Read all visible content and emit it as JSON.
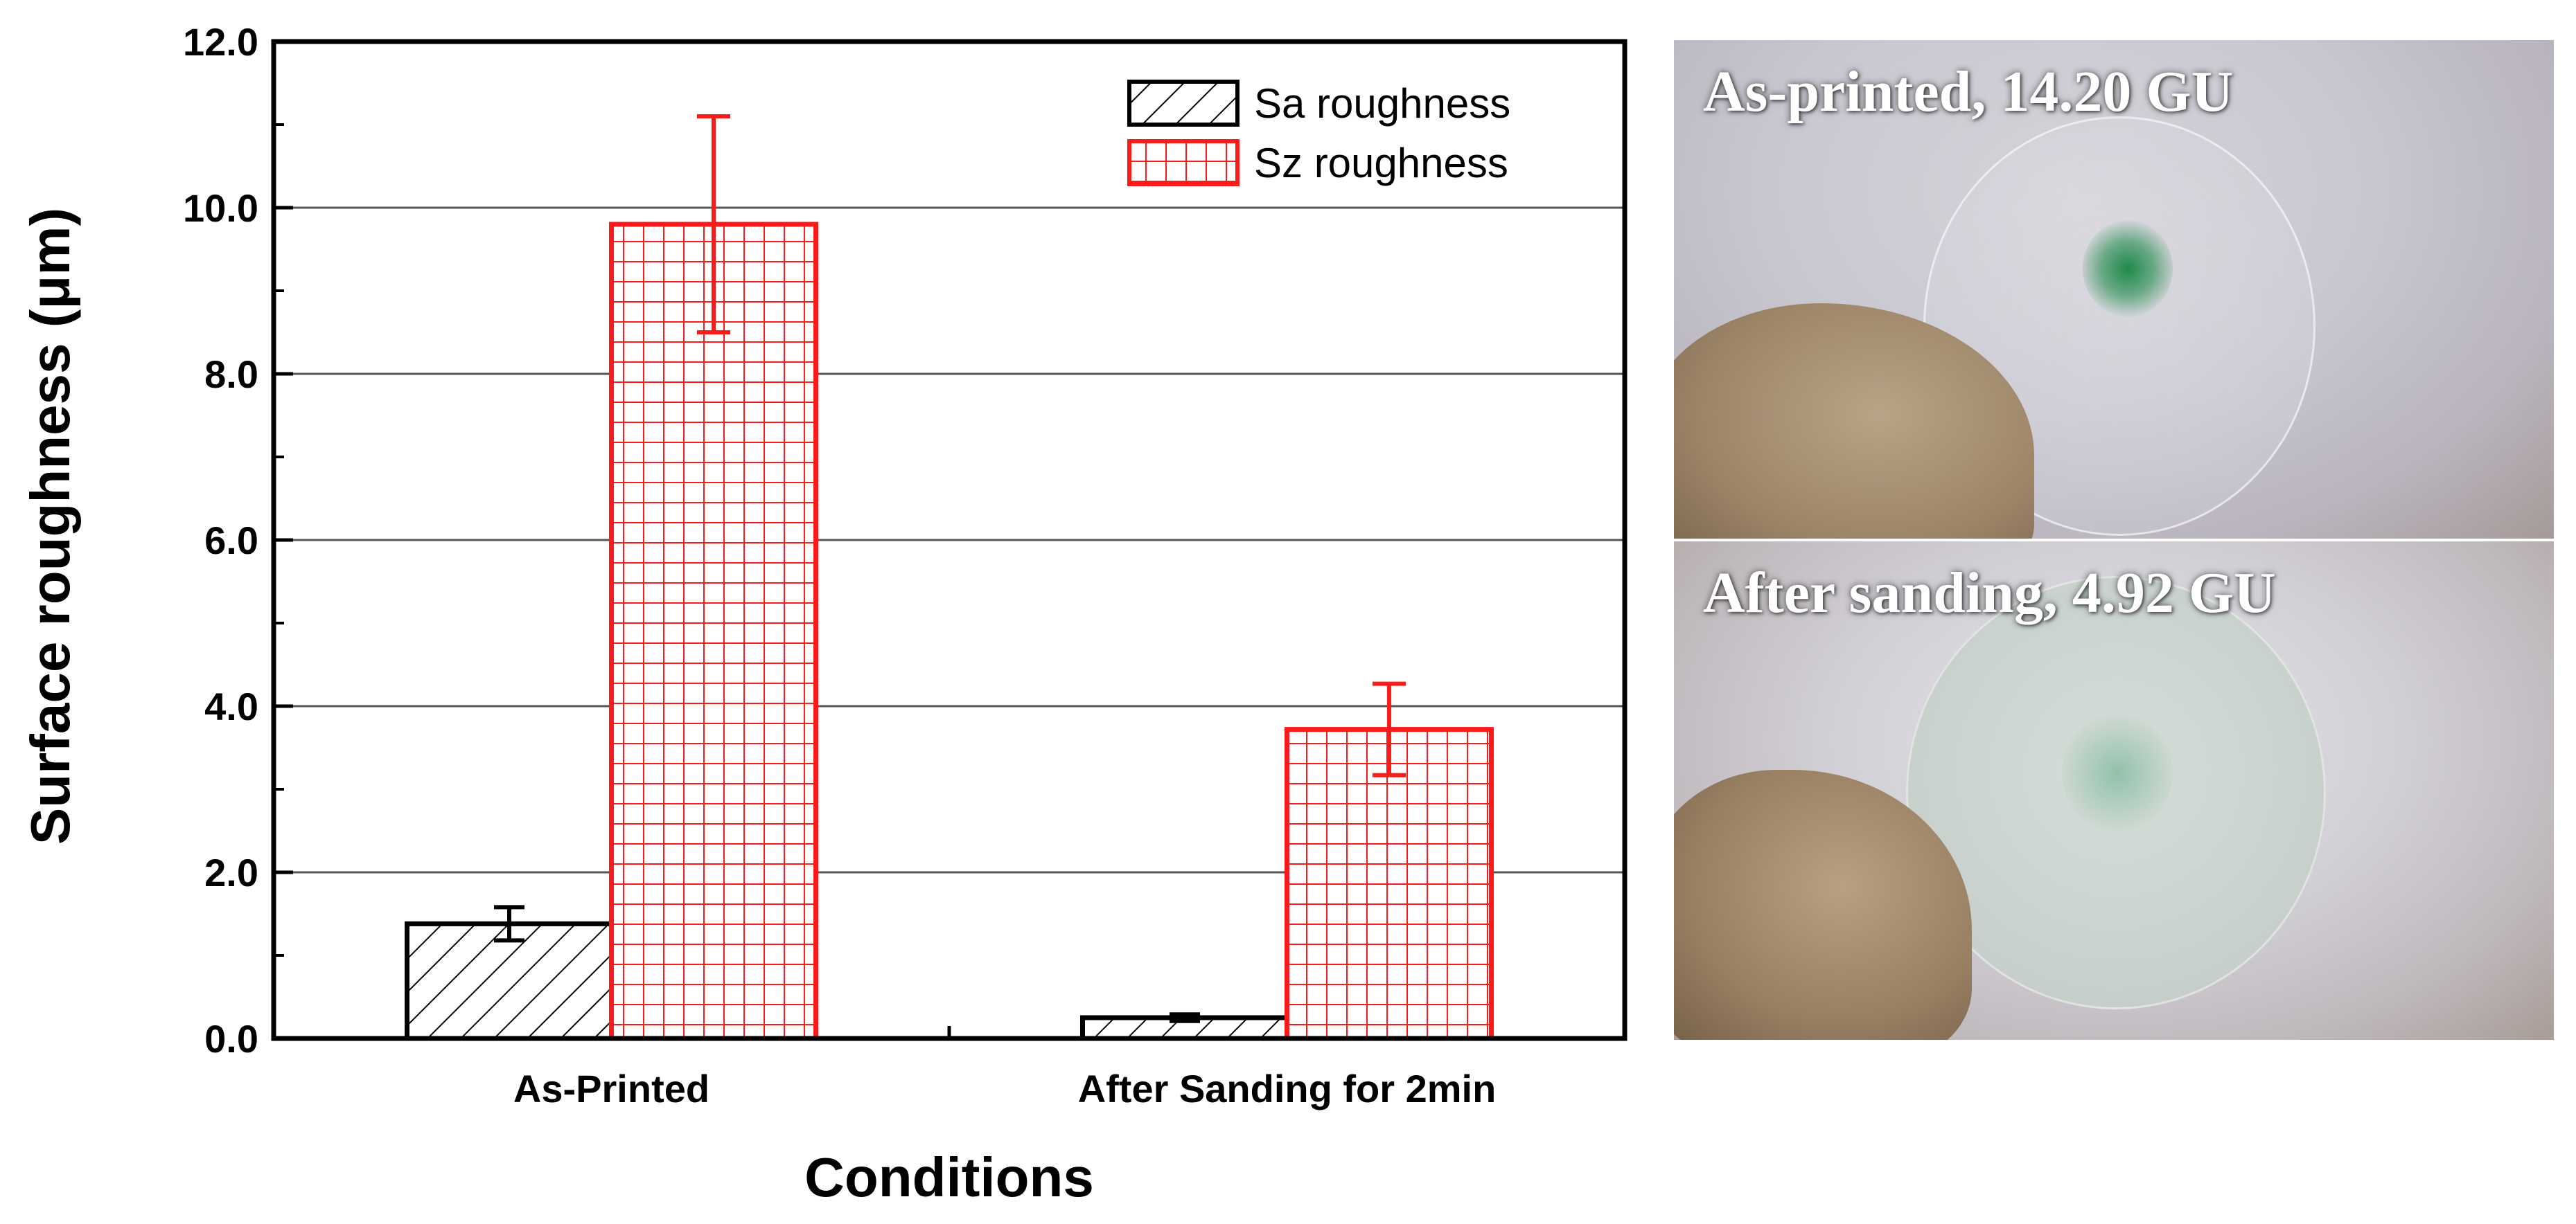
{
  "chart_data": {
    "type": "bar",
    "categories": [
      "As-Printed",
      "After Sanding for 2min"
    ],
    "series": [
      {
        "name": "Sa roughness",
        "values": [
          1.38,
          0.25
        ],
        "errors": [
          0.2,
          0.04
        ],
        "color": "#000000",
        "pattern": "diagonal-hatch"
      },
      {
        "name": "Sz roughness",
        "values": [
          9.8,
          3.72
        ],
        "errors": [
          1.3,
          0.55
        ],
        "color": "#ff1a1a",
        "pattern": "grid-cross"
      }
    ],
    "xlabel": "Conditions",
    "ylabel": "Surface roughness (μm)",
    "ylim": [
      0,
      12
    ],
    "yticks": [
      "0.0",
      "2.0",
      "4.0",
      "6.0",
      "8.0",
      "10.0",
      "12.0"
    ],
    "grid": true,
    "legend_position": "top-right"
  },
  "photos": [
    {
      "caption": "As-printed, 14.20 GU",
      "stain_color": "#1f8a4a"
    },
    {
      "caption": "After sanding, 4.92 GU",
      "stain_color": "#7ab89a"
    }
  ]
}
